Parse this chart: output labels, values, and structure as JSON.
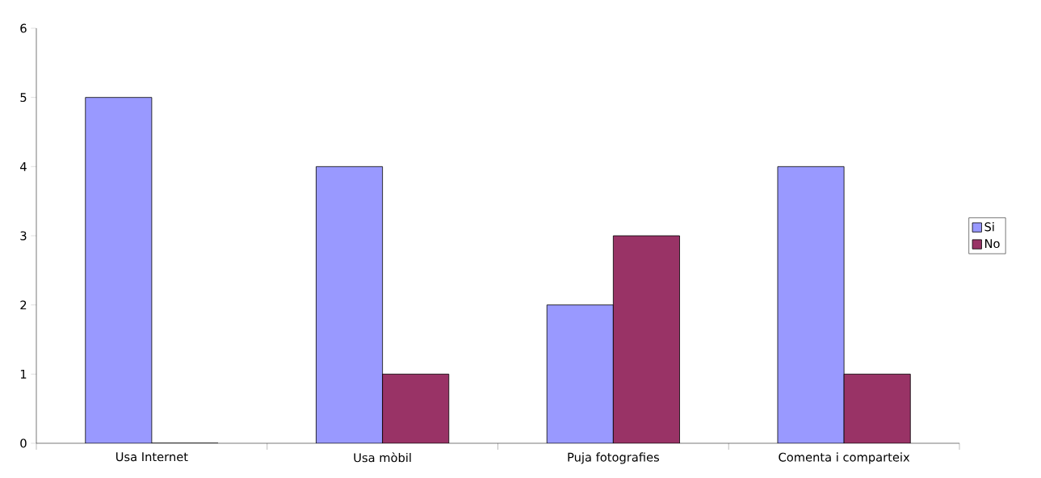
{
  "chart_data": {
    "type": "bar",
    "categories": [
      "Usa Internet",
      "Usa mòbil",
      "Puja fotografies",
      "Comenta i comparteix"
    ],
    "series": [
      {
        "name": "Si",
        "color": "#9999ff",
        "values": [
          5,
          4,
          2,
          4
        ]
      },
      {
        "name": "No",
        "color": "#993366",
        "values": [
          0,
          1,
          3,
          1
        ]
      }
    ],
    "ylim": [
      0,
      6
    ],
    "yticks": [
      0,
      1,
      2,
      3,
      4,
      5,
      6
    ],
    "grid": false,
    "legend": "right"
  }
}
